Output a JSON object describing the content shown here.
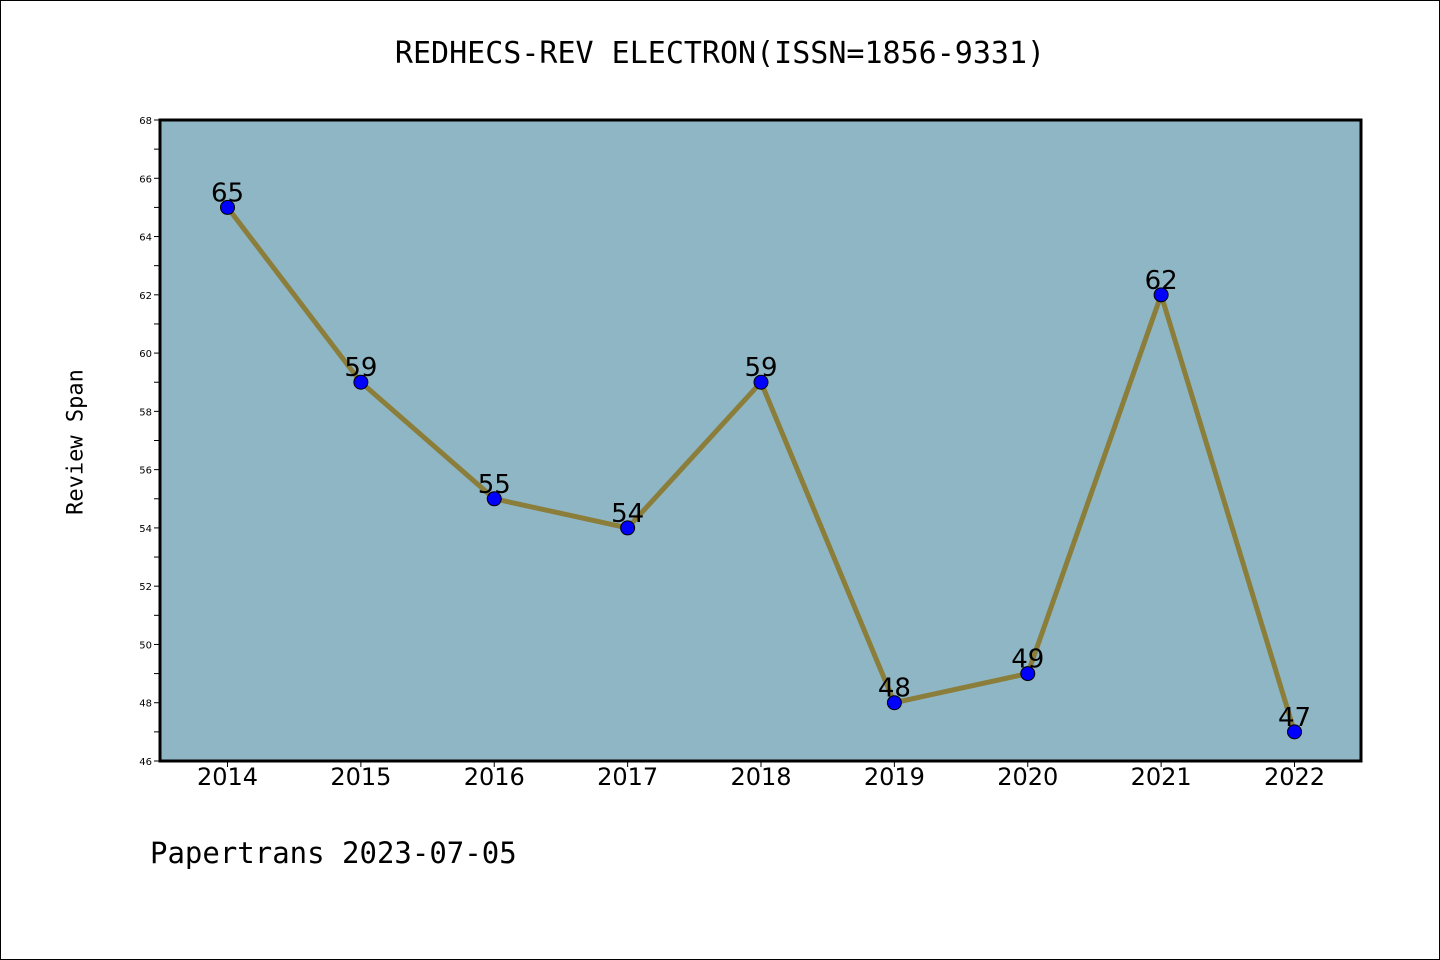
{
  "chart_data": {
    "type": "line",
    "title": "REDHECS-REV ELECTRON(ISSN=1856-9331)",
    "xlabel": "",
    "ylabel": "Review Span",
    "categories": [
      "2014",
      "2015",
      "2016",
      "2017",
      "2018",
      "2019",
      "2020",
      "2021",
      "2022"
    ],
    "values": [
      65,
      59,
      55,
      54,
      59,
      48,
      49,
      62,
      47
    ],
    "ylim": [
      46,
      68
    ],
    "yticks": [
      46,
      48,
      50,
      52,
      54,
      56,
      58,
      60,
      62,
      64,
      66,
      68
    ],
    "grid": false,
    "colors": {
      "plot_bg": "#8fb6c4",
      "line": "#8b7d3a",
      "marker": "#0000ff"
    }
  },
  "footer": "Papertrans 2023-07-05"
}
